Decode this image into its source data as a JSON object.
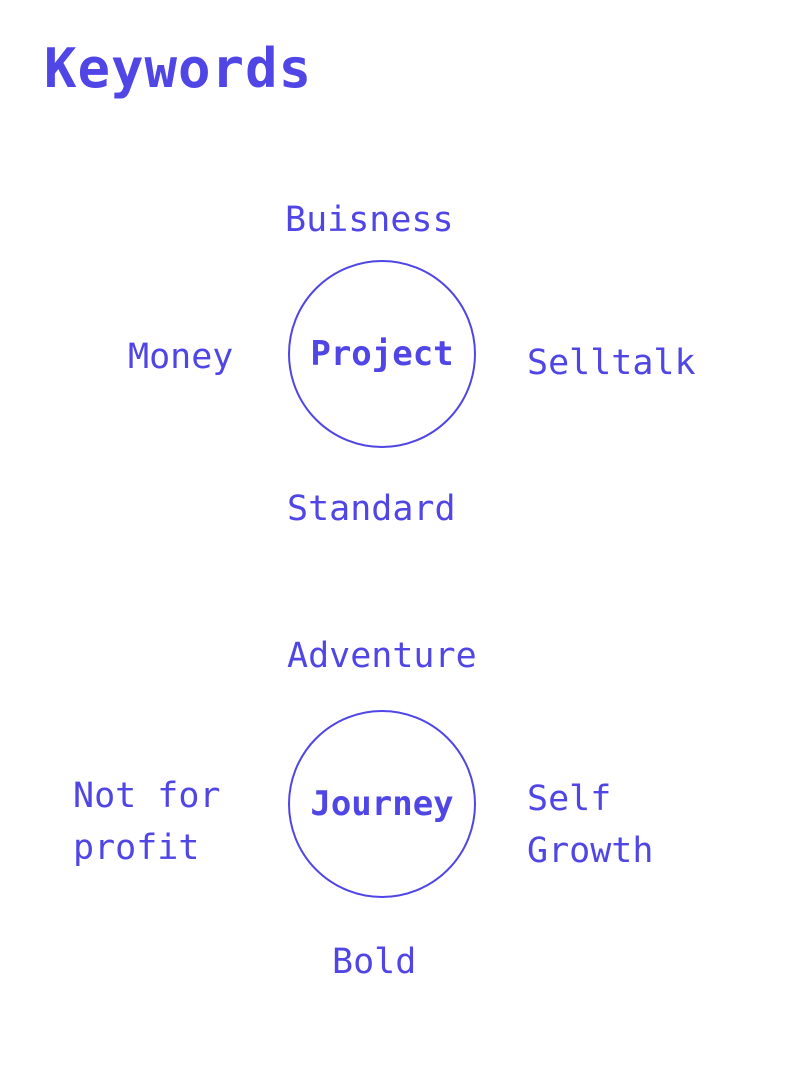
{
  "title": "Keywords",
  "clusters": [
    {
      "center": "Project",
      "top": "Buisness",
      "left": "Money",
      "right": "Selltalk",
      "bottom": "Standard"
    },
    {
      "center": "Journey",
      "top": "Adventure",
      "left": "Not for\nprofit",
      "right": "Self\nGrowth",
      "bottom": "Bold"
    }
  ],
  "colors": {
    "accent": "#4f46e5",
    "background": "#ffffff"
  }
}
